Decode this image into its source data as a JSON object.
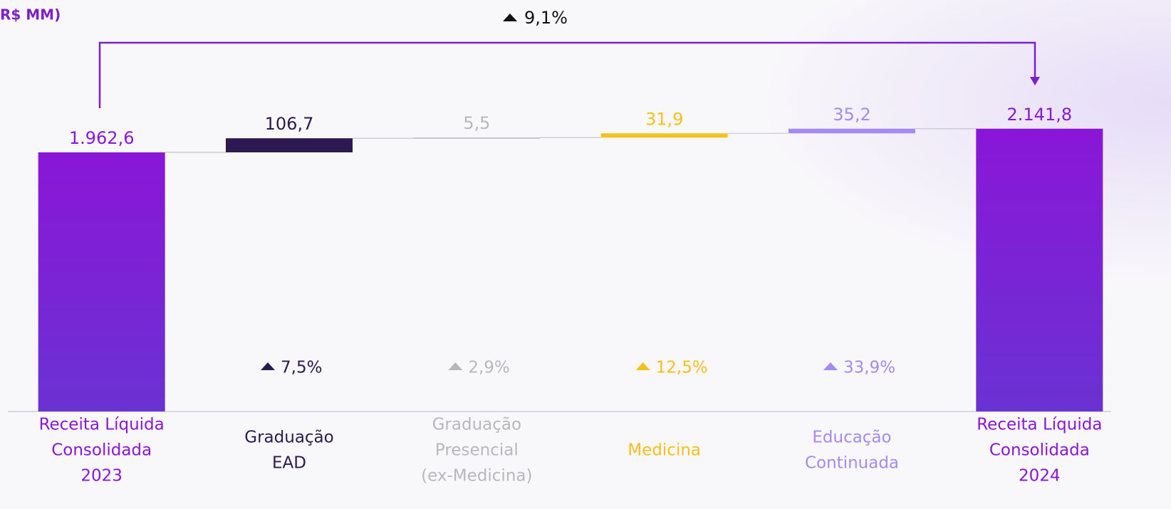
{
  "chart_data": {
    "type": "waterfall",
    "title": "R$ MM)",
    "categories": [
      [
        "Receita Líquida",
        "Consolidada",
        "2023"
      ],
      [
        "Graduação",
        "EAD"
      ],
      [
        "Graduação",
        "Presencial",
        "(ex-Medicina)"
      ],
      [
        "Medicina"
      ],
      [
        "Educação",
        "Continuada"
      ],
      [
        "Receita Líquida",
        "Consolidada",
        "2024"
      ]
    ],
    "measure": [
      "total",
      "relative",
      "relative",
      "relative",
      "relative",
      "total"
    ],
    "values": [
      1962.6,
      106.7,
      5.5,
      31.9,
      35.2,
      2141.8
    ],
    "value_labels": [
      "1.962,6",
      "106,7",
      "5,5",
      "31,9",
      "35,2",
      "2.141,8"
    ],
    "colors": [
      "#8a16d8",
      "#2b1a52",
      "#b8b8bc",
      "#f5bf1c",
      "#a48af2",
      "#8a16d8"
    ],
    "growth_labels": [
      null,
      "7,5%",
      "2,9%",
      "12,5%",
      "33,9%",
      null
    ],
    "total_growth": "9,1%",
    "ylim": [
      0,
      2200
    ]
  }
}
